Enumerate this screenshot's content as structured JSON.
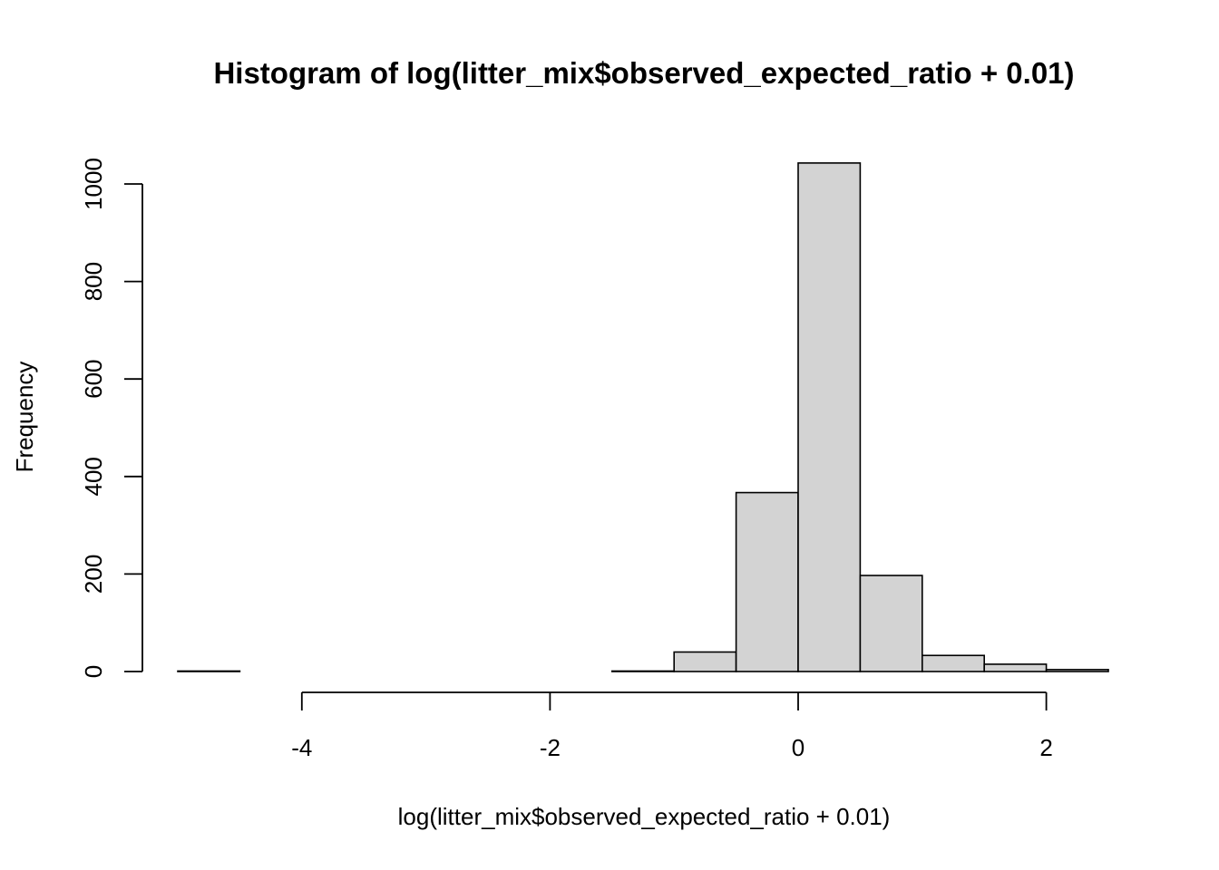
{
  "chart_data": {
    "type": "bar",
    "title": "Histogram of log(litter_mix$observed_expected_ratio + 0.01)",
    "xlabel": "log(litter_mix$observed_expected_ratio + 0.01)",
    "ylabel": "Frequency",
    "bins": [
      {
        "start": -5.0,
        "end": -4.5,
        "count": 1
      },
      {
        "start": -4.5,
        "end": -4.0,
        "count": 0
      },
      {
        "start": -4.0,
        "end": -3.5,
        "count": 0
      },
      {
        "start": -3.5,
        "end": -3.0,
        "count": 0
      },
      {
        "start": -3.0,
        "end": -2.5,
        "count": 0
      },
      {
        "start": -2.5,
        "end": -2.0,
        "count": 0
      },
      {
        "start": -2.0,
        "end": -1.5,
        "count": 0
      },
      {
        "start": -1.5,
        "end": -1.0,
        "count": 1
      },
      {
        "start": -1.0,
        "end": -0.5,
        "count": 40
      },
      {
        "start": -0.5,
        "end": 0.0,
        "count": 367
      },
      {
        "start": 0.0,
        "end": 0.5,
        "count": 1043
      },
      {
        "start": 0.5,
        "end": 1.0,
        "count": 197
      },
      {
        "start": 1.0,
        "end": 1.5,
        "count": 33
      },
      {
        "start": 1.5,
        "end": 2.0,
        "count": 15
      },
      {
        "start": 2.0,
        "end": 2.5,
        "count": 4
      }
    ],
    "xlim": [
      -5.0,
      2.5
    ],
    "ylim": [
      0,
      1043
    ],
    "x_ticks": [
      -4,
      -2,
      0,
      2
    ],
    "y_ticks": [
      0,
      200,
      400,
      600,
      800,
      1000
    ],
    "x_tick_labels": [
      "-4",
      "-2",
      "0",
      "2"
    ],
    "y_tick_labels": [
      "0",
      "200",
      "400",
      "600",
      "800",
      "1000"
    ],
    "grid": false,
    "legend": "none",
    "colors": {
      "bar_fill": "#d3d3d3",
      "bar_stroke": "#000000"
    }
  }
}
